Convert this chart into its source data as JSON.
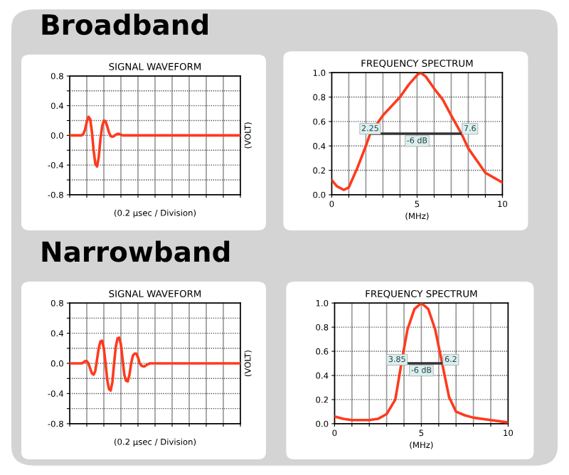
{
  "chart_data": [
    {
      "type": "line",
      "title": "SIGNAL WAVEFORM",
      "xlabel": "(0.2 µsec / Division)",
      "ylabel": "(VOLT)",
      "annotations": [
        "Broadband"
      ],
      "categories": [
        null,
        null,
        null,
        null,
        null,
        null,
        null,
        null,
        null,
        null,
        null,
        null,
        null,
        null,
        null,
        null,
        null,
        null,
        null,
        null,
        null,
        null,
        null,
        null,
        null,
        null,
        null,
        null,
        null,
        null,
        null,
        null,
        null,
        null,
        null,
        null,
        null,
        null,
        null,
        null,
        null,
        null,
        null,
        null,
        null,
        null,
        null,
        null,
        null,
        null,
        null,
        null,
        null,
        null,
        null,
        null,
        null,
        null,
        null,
        null,
        null,
        null,
        null,
        null,
        null,
        null,
        null,
        null,
        null,
        null,
        null,
        null,
        null,
        null,
        null,
        null,
        null,
        null,
        null,
        null,
        null,
        null,
        null,
        null,
        null,
        null,
        null,
        null,
        null,
        null,
        null,
        null,
        null,
        null,
        null,
        null,
        null,
        null,
        null,
        null,
        null
      ],
      "series": [
        {
          "color": "#ff3a1e",
          "values": [
            0,
            0,
            0,
            0,
            0,
            0,
            0,
            0,
            0.02,
            0.08,
            0.18,
            0.25,
            0.22,
            0.05,
            -0.2,
            -0.38,
            -0.42,
            -0.3,
            -0.05,
            0.12,
            0.2,
            0.19,
            0.12,
            0.04,
            -0.01,
            -0.02,
            -0.01,
            0.01,
            0.02,
            0.02,
            0.01,
            0,
            0,
            0,
            0,
            0,
            0,
            0,
            0,
            0,
            0,
            0,
            0,
            0,
            0,
            0,
            0,
            0,
            0,
            0,
            0,
            0,
            0,
            0,
            0,
            0,
            0,
            0,
            0,
            0,
            0,
            0,
            0,
            0,
            0,
            0,
            0,
            0,
            0,
            0,
            0,
            0,
            0,
            0,
            0,
            0,
            0,
            0,
            0,
            0,
            0,
            0,
            0,
            0,
            0,
            0,
            0,
            0,
            0,
            0,
            0,
            0,
            0,
            0,
            0,
            0,
            0,
            0,
            0,
            0,
            0
          ]
        }
      ],
      "ylim": [
        -0.8,
        0.8
      ],
      "yticks": [
        {
          "value": -0.8,
          "label": "-0.8"
        },
        {
          "value": -0.6,
          "label": null
        },
        {
          "value": -0.4,
          "label": "-0.4"
        },
        {
          "value": -0.2,
          "label": null
        },
        {
          "value": 0,
          "label": "0.0"
        },
        {
          "value": 0.2,
          "label": null
        },
        {
          "value": 0.4,
          "label": "0.4"
        },
        {
          "value": 0.6,
          "label": null
        },
        {
          "value": 0.8,
          "label": "0.8"
        }
      ],
      "grid": true,
      "tick_labels": "y"
    },
    {
      "type": "line",
      "title": "FREQUENCY SPECTRUM",
      "xlabel": "(MHz)",
      "annotations": [
        {
          "text": "2.25",
          "x": 2.25,
          "y": 0.54
        },
        {
          "text": "7.6",
          "x": 8.1,
          "y": 0.54
        },
        {
          "text": "-6 dB",
          "x": 5,
          "y": 0.44
        }
      ],
      "series": [
        {
          "color": "#ff3a1e",
          "x": [
            0,
            0.3,
            0.7,
            1.0,
            1.5,
            2.0,
            2.25,
            3,
            4,
            4.5,
            5,
            5.2,
            5.5,
            6,
            6.5,
            7,
            7.6,
            8,
            8.5,
            9,
            9.5,
            10
          ],
          "values": [
            0.12,
            0.07,
            0.04,
            0.06,
            0.22,
            0.4,
            0.5,
            0.65,
            0.8,
            0.9,
            0.98,
            1.0,
            0.97,
            0.87,
            0.78,
            0.65,
            0.5,
            0.38,
            0.28,
            0.18,
            0.14,
            0.1
          ]
        },
        {
          "color": "#333333",
          "x": [
            2.25,
            7.6
          ],
          "values": [
            0.5,
            0.5
          ]
        }
      ],
      "xlim": [
        0,
        10
      ],
      "xticks": [
        0,
        {
          "value": 1,
          "label": null
        },
        {
          "value": 2,
          "label": null
        },
        {
          "value": 3,
          "label": null
        },
        {
          "value": 4,
          "label": null
        },
        5,
        {
          "value": 6,
          "label": null
        },
        {
          "value": 7,
          "label": null
        },
        {
          "value": 8,
          "label": null
        },
        {
          "value": 9,
          "label": null
        },
        10
      ],
      "ylim": [
        0,
        1
      ],
      "yticks": [
        {
          "value": 0,
          "label": "0.0"
        },
        {
          "value": 0.2,
          "label": "0.2"
        },
        {
          "value": 0.4,
          "label": "0.4"
        },
        {
          "value": 0.6,
          "label": "0.6"
        },
        {
          "value": 0.8,
          "label": "0.8"
        },
        {
          "value": 1,
          "label": "1.0"
        }
      ],
      "grid": true
    },
    {
      "type": "line",
      "title": "SIGNAL WAVEFORM",
      "xlabel": "(0.2 µsec / Division)",
      "ylabel": "(VOLT)",
      "annotations": [
        "Narrowband"
      ],
      "categories": [
        null,
        null,
        null,
        null,
        null,
        null,
        null,
        null,
        null,
        null,
        null,
        null,
        null,
        null,
        null,
        null,
        null,
        null,
        null,
        null,
        null,
        null,
        null,
        null,
        null,
        null,
        null,
        null,
        null,
        null,
        null,
        null,
        null,
        null,
        null,
        null,
        null,
        null,
        null,
        null,
        null,
        null,
        null,
        null,
        null,
        null,
        null,
        null,
        null,
        null,
        null,
        null,
        null,
        null,
        null,
        null,
        null,
        null,
        null,
        null,
        null,
        null,
        null,
        null,
        null,
        null,
        null,
        null,
        null,
        null,
        null,
        null,
        null,
        null,
        null,
        null,
        null,
        null,
        null,
        null,
        null,
        null,
        null,
        null,
        null,
        null,
        null,
        null,
        null,
        null,
        null,
        null,
        null,
        null,
        null,
        null,
        null,
        null,
        null,
        null,
        null
      ],
      "series": [
        {
          "color": "#ff3a1e",
          "values": [
            0,
            0,
            0,
            0,
            0,
            0,
            0,
            0,
            0.01,
            0.03,
            0.03,
            0,
            -0.07,
            -0.13,
            -0.15,
            -0.1,
            0.05,
            0.2,
            0.29,
            0.3,
            0.2,
            0,
            -0.22,
            -0.34,
            -0.36,
            -0.25,
            0,
            0.22,
            0.33,
            0.34,
            0.25,
            0.05,
            -0.15,
            -0.23,
            -0.24,
            -0.15,
            0,
            0.1,
            0.13,
            0.13,
            0.08,
            0,
            -0.03,
            -0.04,
            -0.04,
            -0.02,
            -0.01,
            0,
            0,
            0,
            0,
            0,
            0,
            0,
            0,
            0,
            0,
            0,
            0,
            0,
            0,
            0,
            0,
            0,
            0,
            0,
            0,
            0,
            0,
            0,
            0,
            0,
            0,
            0,
            0,
            0,
            0,
            0,
            0,
            0,
            0,
            0,
            0,
            0,
            0,
            0,
            0,
            0,
            0,
            0,
            0,
            0,
            0,
            0,
            0,
            0,
            0,
            0,
            0,
            0,
            0
          ]
        }
      ],
      "ylim": [
        -0.8,
        0.8
      ],
      "yticks": [
        {
          "value": -0.8,
          "label": "-0.8"
        },
        {
          "value": -0.6,
          "label": null
        },
        {
          "value": -0.4,
          "label": "-0.4"
        },
        {
          "value": -0.2,
          "label": null
        },
        {
          "value": 0,
          "label": "0.0"
        },
        {
          "value": 0.2,
          "label": null
        },
        {
          "value": 0.4,
          "label": "0.4"
        },
        {
          "value": 0.6,
          "label": null
        },
        {
          "value": 0.8,
          "label": "0.8"
        }
      ],
      "grid": true,
      "tick_labels": "y"
    },
    {
      "type": "line",
      "title": "FREQUENCY SPECTRUM",
      "xlabel": "(MHz)",
      "annotations": [
        {
          "text": "3.85",
          "x": 3.6,
          "y": 0.53
        },
        {
          "text": "6.2",
          "x": 6.7,
          "y": 0.53
        },
        {
          "text": "-6 dB",
          "x": 5,
          "y": 0.44
        }
      ],
      "series": [
        {
          "color": "#ff3a1e",
          "x": [
            0,
            0.5,
            1,
            2,
            2.5,
            3,
            3.5,
            3.85,
            4.2,
            4.6,
            5,
            5.4,
            5.8,
            6.2,
            6.6,
            7,
            7.5,
            8,
            9,
            10
          ],
          "values": [
            0.06,
            0.04,
            0.03,
            0.03,
            0.04,
            0.08,
            0.2,
            0.5,
            0.78,
            0.95,
            1.0,
            0.95,
            0.78,
            0.5,
            0.22,
            0.1,
            0.07,
            0.05,
            0.03,
            0.01
          ]
        },
        {
          "color": "#333333",
          "x": [
            3.85,
            6.2
          ],
          "values": [
            0.5,
            0.5
          ]
        }
      ],
      "xlim": [
        0,
        10
      ],
      "xticks": [
        0,
        {
          "value": 1,
          "label": null
        },
        {
          "value": 2,
          "label": null
        },
        {
          "value": 3,
          "label": null
        },
        {
          "value": 4,
          "label": null
        },
        5,
        {
          "value": 6,
          "label": null
        },
        {
          "value": 7,
          "label": null
        },
        {
          "value": 8,
          "label": null
        },
        {
          "value": 9,
          "label": null
        },
        10
      ],
      "ylim": [
        0,
        1
      ],
      "yticks": [
        {
          "value": 0,
          "label": "0.0"
        },
        {
          "value": 0.2,
          "label": "0.2"
        },
        {
          "value": 0.4,
          "label": "0.4"
        },
        {
          "value": 0.6,
          "label": "0.6"
        },
        {
          "value": 0.8,
          "label": "0.8"
        },
        {
          "value": 1,
          "label": "1.0"
        }
      ],
      "grid": true
    }
  ]
}
